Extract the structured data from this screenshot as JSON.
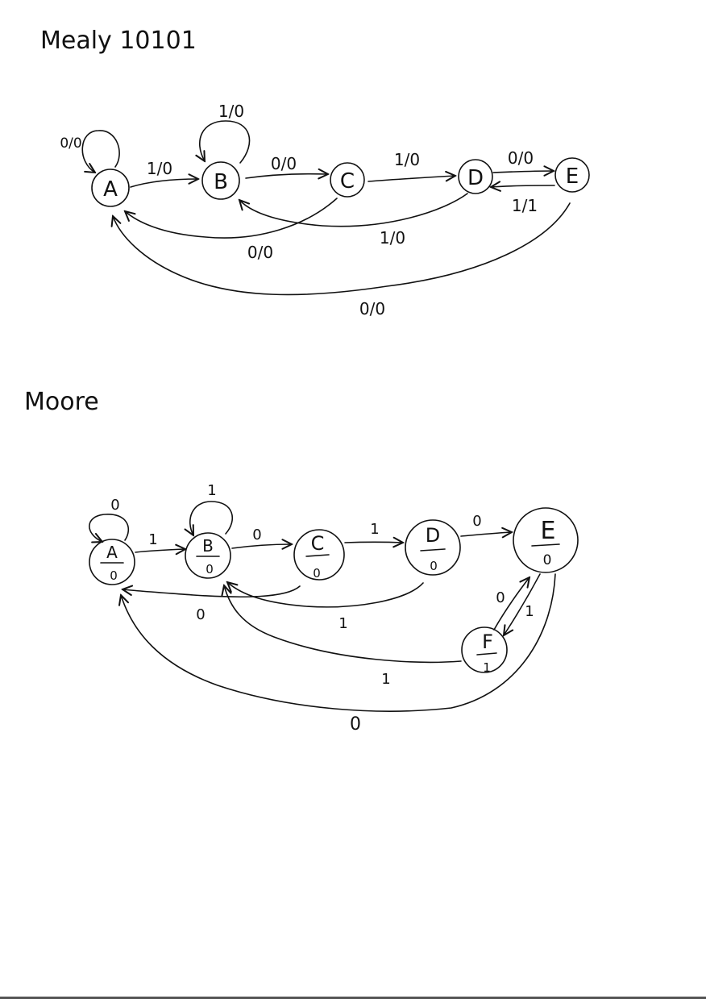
{
  "mealy": {
    "title": "Mealy 10101",
    "states": [
      "A",
      "B",
      "C",
      "D",
      "E"
    ],
    "transitions": [
      {
        "from": "A",
        "to": "A",
        "label": "0/0"
      },
      {
        "from": "A",
        "to": "B",
        "label": "1/0"
      },
      {
        "from": "B",
        "to": "B",
        "label": "1/0"
      },
      {
        "from": "B",
        "to": "C",
        "label": "0/0"
      },
      {
        "from": "C",
        "to": "D",
        "label": "1/0"
      },
      {
        "from": "D",
        "to": "E",
        "label": "0/0"
      },
      {
        "from": "E",
        "to": "D",
        "label": "1/1"
      },
      {
        "from": "C",
        "to": "A",
        "label": "0/0"
      },
      {
        "from": "D",
        "to": "B",
        "label": "1/0"
      },
      {
        "from": "E",
        "to": "A",
        "label": "0/0"
      }
    ]
  },
  "moore": {
    "title": "Moore",
    "states": [
      {
        "name": "A",
        "output": "0"
      },
      {
        "name": "B",
        "output": "0"
      },
      {
        "name": "C",
        "output": "0"
      },
      {
        "name": "D",
        "output": "0"
      },
      {
        "name": "E",
        "output": "0"
      },
      {
        "name": "F",
        "output": "1"
      }
    ],
    "transitions": [
      {
        "from": "A",
        "to": "A",
        "label": "0"
      },
      {
        "from": "A",
        "to": "B",
        "label": "1"
      },
      {
        "from": "B",
        "to": "B",
        "label": "1"
      },
      {
        "from": "B",
        "to": "C",
        "label": "0"
      },
      {
        "from": "C",
        "to": "D",
        "label": "1"
      },
      {
        "from": "D",
        "to": "E",
        "label": "0"
      },
      {
        "from": "C",
        "to": "A",
        "label": "0"
      },
      {
        "from": "D",
        "to": "B",
        "label": "1"
      },
      {
        "from": "E",
        "to": "F",
        "label": "1"
      },
      {
        "from": "F",
        "to": "E",
        "label": "0"
      },
      {
        "from": "F",
        "to": "B",
        "label": "1"
      },
      {
        "from": "E",
        "to": "A",
        "label": "0"
      }
    ]
  }
}
